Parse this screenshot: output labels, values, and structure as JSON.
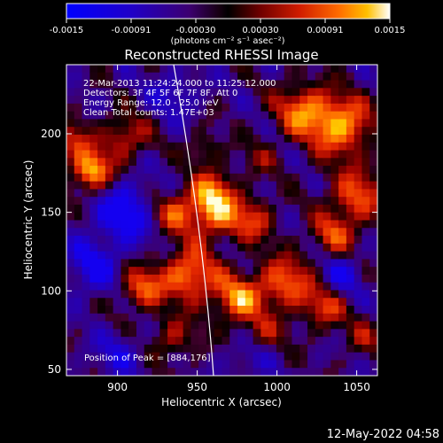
{
  "colorbar": {
    "ticks": [
      "-0.0015",
      "-0.00091",
      "-0.00030",
      "0.00030",
      "0.00091",
      "0.0015"
    ],
    "unit_label": "(photons cm⁻² s⁻¹ asec⁻²)",
    "range": [
      -0.0015,
      0.0015
    ]
  },
  "chart_data": {
    "type": "heatmap",
    "title": "Reconstructed RHESSI Image",
    "xlabel": "Heliocentric X (arcsec)",
    "ylabel": "Heliocentric Y (arcsec)",
    "x_ticks": [
      "900",
      "950",
      "1000",
      "1050"
    ],
    "y_ticks": [
      "50",
      "100",
      "150",
      "200"
    ],
    "xlim": [
      868,
      1063
    ],
    "ylim": [
      46,
      244
    ],
    "annotations": [
      "22-Mar-2013 11:24:24.000 to 11:25:12.000",
      "Detectors: 3F 4F 5F 6F 7F 8F, Att 0",
      "Energy Range: 12.0 - 25.0 keV",
      "Clean    Total counts: 1.47E+03"
    ],
    "peak_text": "Position of Peak = [884,176]",
    "peak": [
      884,
      176
    ],
    "limb_visible": true,
    "color_table": "red-temperature, blue for negative values"
  },
  "footer": {
    "timestamp": "12-May-2022 04:58"
  }
}
